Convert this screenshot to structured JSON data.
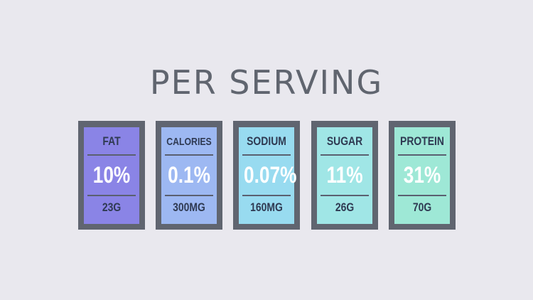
{
  "title": "PER SERVING",
  "cards": [
    {
      "label": "FAT",
      "percent": "10%",
      "amount": "23G",
      "color": "#8a84e6"
    },
    {
      "label": "CALORIES",
      "percent": "0.1%",
      "amount": "300MG",
      "color": "#9db8f2"
    },
    {
      "label": "SODIUM",
      "percent": "0.07%",
      "amount": "160MG",
      "color": "#98dbf0"
    },
    {
      "label": "SUGAR",
      "percent": "11%",
      "amount": "26G",
      "color": "#a0e6e6"
    },
    {
      "label": "PROTEIN",
      "percent": "31%",
      "amount": "70G",
      "color": "#9ee8d6"
    }
  ],
  "frame_color": "#606570",
  "background_color": "#e9e8ee"
}
